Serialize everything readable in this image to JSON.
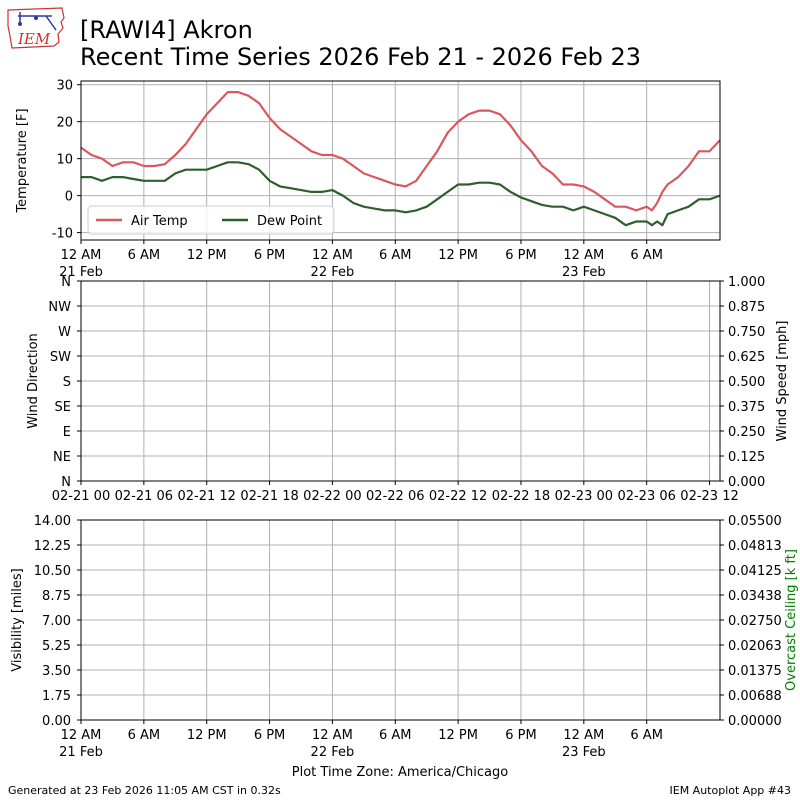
{
  "header": {
    "title": "[RAWI4] Akron",
    "subtitle": "Recent Time Series 2026 Feb 21 - 2026 Feb 23",
    "logo_text": "IEM"
  },
  "footer": {
    "generated": "Generated at 23 Feb 2026 11:05 AM CST in 0.32s",
    "app": "IEM Autoplot App #43",
    "timezone_label": "Plot Time Zone: America/Chicago"
  },
  "colors": {
    "air_temp": "#d9585f",
    "dew_point": "#2e5e2e",
    "grid": "#b0b0b0",
    "ceiling_label": "#008000"
  },
  "chart_data": [
    {
      "type": "line",
      "name": "temperature",
      "ylabel": "Temperature [F]",
      "xlim_hours": [
        0,
        61
      ],
      "ylim": [
        -12,
        31
      ],
      "yticks": [
        -10,
        0,
        10,
        20,
        30
      ],
      "grid": true,
      "legend": "lower-left",
      "x_ticks": [
        {
          "hour": 0,
          "label": "12 AM",
          "sub": "21 Feb"
        },
        {
          "hour": 6,
          "label": "6 AM",
          "sub": ""
        },
        {
          "hour": 12,
          "label": "12 PM",
          "sub": ""
        },
        {
          "hour": 18,
          "label": "6 PM",
          "sub": ""
        },
        {
          "hour": 24,
          "label": "12 AM",
          "sub": "22 Feb"
        },
        {
          "hour": 30,
          "label": "6 AM",
          "sub": ""
        },
        {
          "hour": 36,
          "label": "12 PM",
          "sub": ""
        },
        {
          "hour": 42,
          "label": "6 PM",
          "sub": ""
        },
        {
          "hour": 48,
          "label": "12 AM",
          "sub": "23 Feb"
        },
        {
          "hour": 54,
          "label": "6 AM",
          "sub": ""
        }
      ],
      "series": [
        {
          "name": "Air Temp",
          "color": "#d9585f",
          "x": [
            0,
            1,
            2,
            3,
            4,
            5,
            6,
            7,
            8,
            9,
            10,
            11,
            12,
            13,
            14,
            15,
            16,
            17,
            18,
            19,
            20,
            21,
            22,
            23,
            24,
            25,
            26,
            27,
            28,
            29,
            30,
            31,
            32,
            33,
            34,
            35,
            36,
            37,
            38,
            39,
            40,
            41,
            42,
            43,
            44,
            45,
            46,
            47,
            48,
            49,
            50,
            51,
            52,
            53,
            54,
            54.5,
            55,
            55.5,
            56,
            57,
            58,
            59,
            60,
            61
          ],
          "y": [
            13,
            11,
            10,
            8,
            9,
            9,
            8,
            8,
            8.5,
            11,
            14,
            18,
            22,
            25,
            28,
            28,
            27,
            25,
            21,
            18,
            16,
            14,
            12,
            11,
            11,
            10,
            8,
            6,
            5,
            4,
            3,
            2.5,
            4,
            8,
            12,
            17,
            20,
            22,
            23,
            23,
            22,
            19,
            15,
            12,
            8,
            6,
            3,
            3,
            2.5,
            1,
            -1,
            -3,
            -3,
            -4,
            -3,
            -4,
            -2,
            1,
            3,
            5,
            8,
            12,
            12,
            15
          ]
        },
        {
          "name": "Dew Point",
          "color": "#2e5e2e",
          "x": [
            0,
            1,
            2,
            3,
            4,
            5,
            6,
            7,
            8,
            9,
            10,
            11,
            12,
            13,
            14,
            15,
            16,
            17,
            18,
            19,
            20,
            21,
            22,
            23,
            24,
            25,
            26,
            27,
            28,
            29,
            30,
            31,
            32,
            33,
            34,
            35,
            36,
            37,
            38,
            39,
            40,
            41,
            42,
            43,
            44,
            45,
            46,
            47,
            48,
            49,
            50,
            51,
            52,
            53,
            54,
            54.5,
            55,
            55.5,
            56,
            57,
            58,
            59,
            60,
            61
          ],
          "y": [
            5,
            5,
            4,
            5,
            5,
            4.5,
            4,
            4,
            4,
            6,
            7,
            7,
            7,
            8,
            9,
            9,
            8.5,
            7,
            4,
            2.5,
            2,
            1.5,
            1,
            1,
            1.5,
            0,
            -2,
            -3,
            -3.5,
            -4,
            -4,
            -4.5,
            -4,
            -3,
            -1,
            1,
            3,
            3,
            3.5,
            3.5,
            3,
            1,
            -0.5,
            -1.5,
            -2.5,
            -3,
            -3,
            -4,
            -3,
            -4,
            -5,
            -6,
            -8,
            -7,
            -7,
            -8,
            -7,
            -8,
            -5,
            -4,
            -3,
            -1,
            -1,
            0
          ]
        }
      ]
    },
    {
      "type": "line",
      "name": "wind",
      "ylabel": "Wind Direction",
      "y2label": "Wind Speed [mph]",
      "ylim": [
        0,
        360
      ],
      "y2lim": [
        0,
        1
      ],
      "grid": true,
      "direction_ticks": [
        "N",
        "NE",
        "E",
        "SE",
        "S",
        "SW",
        "W",
        "NW",
        "N"
      ],
      "speed_ticks": [
        "0.000",
        "0.125",
        "0.250",
        "0.375",
        "0.500",
        "0.625",
        "0.750",
        "0.875",
        "1.000"
      ],
      "x_ticks": [
        "02-21 06",
        "02-21 12",
        "02-21 18",
        "02-22 00",
        "02-22 06",
        "02-22 12",
        "02-22 18",
        "02-23 00",
        "02-23 06",
        "02-23 12"
      ],
      "x_first_label": "02-21 00",
      "series": []
    },
    {
      "type": "line",
      "name": "visibility",
      "ylabel": "Visibility [miles]",
      "y2label": "Overcast Ceiling [k ft]",
      "ylim": [
        0,
        14
      ],
      "y2lim": [
        0,
        0.055
      ],
      "grid": true,
      "vis_ticks": [
        "0.00",
        "1.75",
        "3.50",
        "5.25",
        "7.00",
        "8.75",
        "10.50",
        "12.25",
        "14.00"
      ],
      "ceiling_ticks": [
        "0.00000",
        "0.00688",
        "0.01375",
        "0.02063",
        "0.02750",
        "0.03438",
        "0.04125",
        "0.04813",
        "0.05500"
      ],
      "series": []
    }
  ]
}
